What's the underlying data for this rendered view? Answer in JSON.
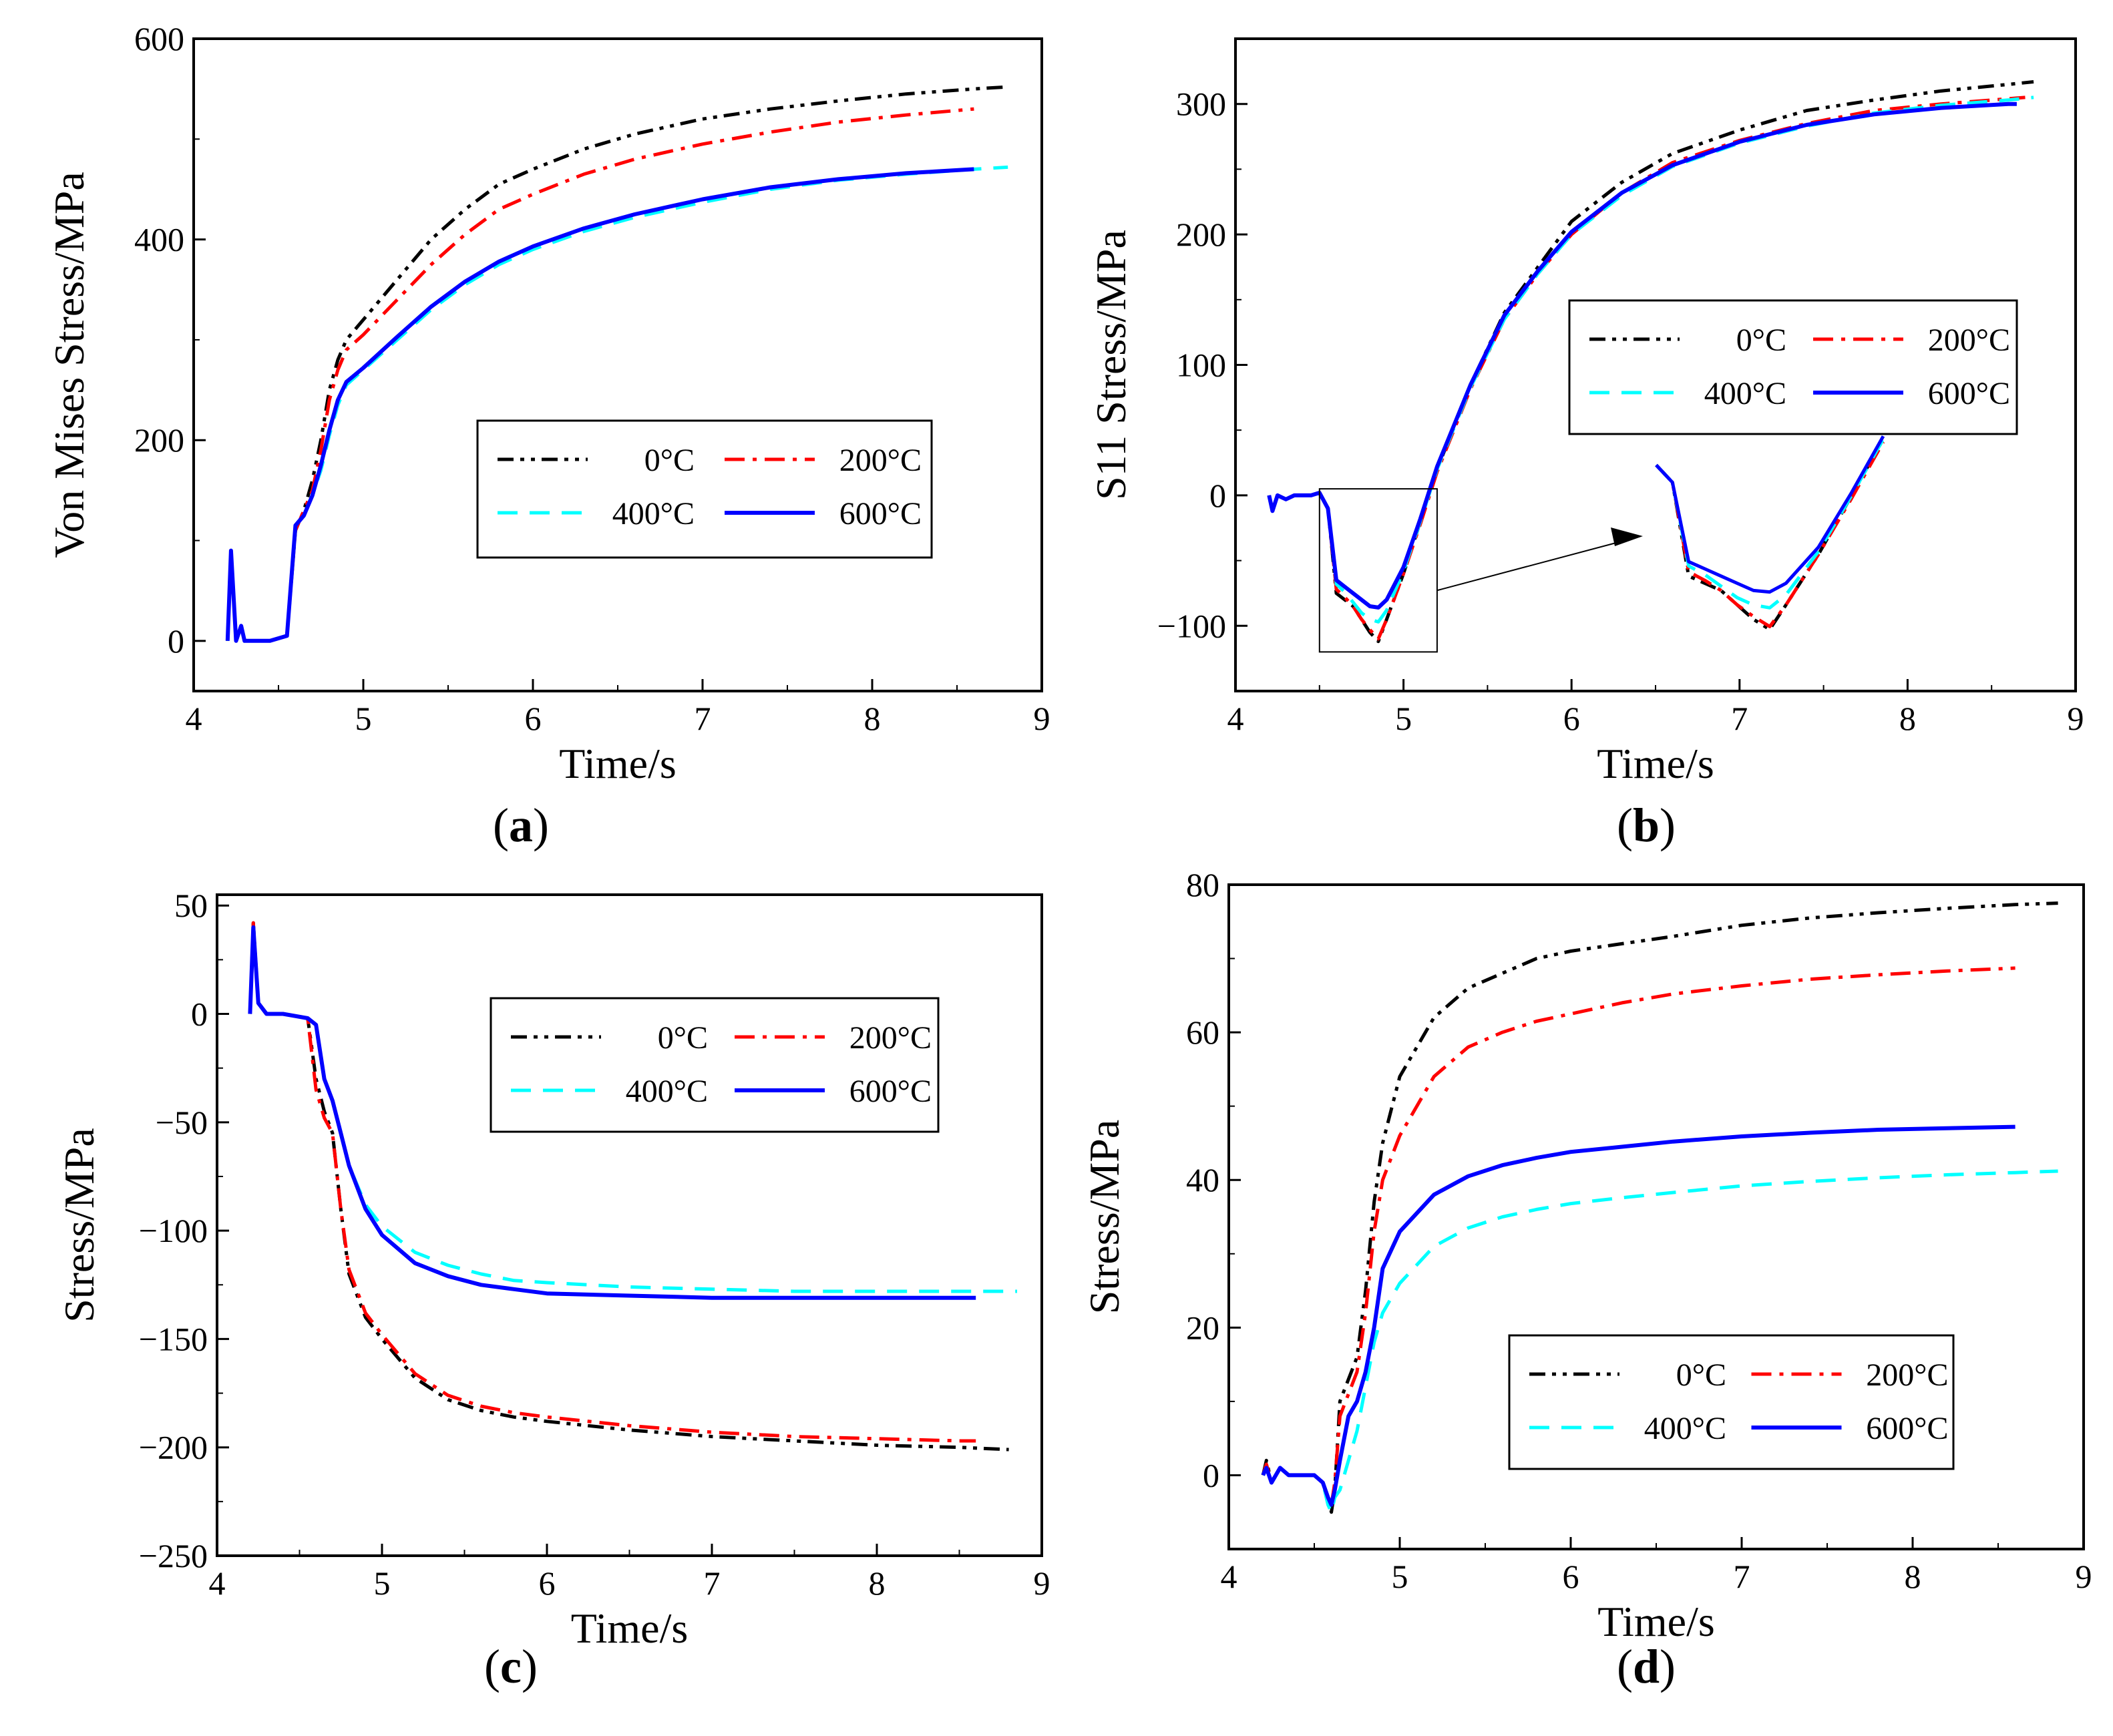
{
  "figure": {
    "series_styles": [
      {
        "name": "0°C",
        "color": "#000000",
        "dash": "dashdotdot"
      },
      {
        "name": "200°C",
        "color": "#ff0000",
        "dash": "dashdot"
      },
      {
        "name": "400°C",
        "color": "#00ffff",
        "dash": "dash"
      },
      {
        "name": "600°C",
        "color": "#0000ff",
        "dash": "solid"
      }
    ]
  },
  "chart_data": [
    {
      "id": "a",
      "type": "line",
      "panel_label": "(a)",
      "label_letter": "a",
      "ylabel": "Von Mises Stress/MPa",
      "xlabel": "Time/s",
      "xlim": [
        4,
        9
      ],
      "ylim": [
        -50,
        600
      ],
      "xticks": [
        4,
        5,
        6,
        7,
        8,
        9
      ],
      "yticks": [
        0,
        200,
        400,
        600
      ],
      "legend_position": "center-right",
      "series": [
        {
          "name": "0°C",
          "x": [
            4.2,
            4.22,
            4.25,
            4.28,
            4.3,
            4.35,
            4.45,
            4.55,
            4.6,
            4.65,
            4.7,
            4.75,
            4.8,
            4.85,
            4.9,
            5.0,
            5.2,
            5.4,
            5.6,
            5.8,
            6.0,
            6.3,
            6.6,
            7.0,
            7.4,
            7.8,
            8.2,
            8.6,
            8.8
          ],
          "y": [
            0,
            90,
            0,
            15,
            0,
            0,
            0,
            5,
            110,
            130,
            160,
            200,
            250,
            280,
            300,
            320,
            360,
            400,
            430,
            455,
            470,
            490,
            505,
            520,
            530,
            538,
            545,
            550,
            552
          ]
        },
        {
          "name": "200°C",
          "x": [
            4.2,
            4.22,
            4.25,
            4.28,
            4.3,
            4.35,
            4.45,
            4.55,
            4.6,
            4.65,
            4.7,
            4.75,
            4.8,
            4.85,
            4.9,
            5.0,
            5.2,
            5.4,
            5.6,
            5.8,
            6.0,
            6.3,
            6.6,
            7.0,
            7.4,
            7.8,
            8.2,
            8.6
          ],
          "y": [
            0,
            90,
            0,
            15,
            0,
            0,
            0,
            5,
            110,
            130,
            150,
            190,
            240,
            270,
            290,
            305,
            340,
            375,
            405,
            430,
            445,
            465,
            480,
            495,
            507,
            517,
            524,
            530
          ]
        },
        {
          "name": "400°C",
          "x": [
            4.2,
            4.22,
            4.25,
            4.28,
            4.3,
            4.35,
            4.45,
            4.55,
            4.6,
            4.65,
            4.7,
            4.75,
            4.8,
            4.85,
            4.9,
            5.0,
            5.2,
            5.4,
            5.6,
            5.8,
            6.0,
            6.3,
            6.6,
            7.0,
            7.4,
            7.8,
            8.2,
            8.6,
            8.8
          ],
          "y": [
            0,
            90,
            0,
            15,
            0,
            0,
            0,
            5,
            115,
            125,
            145,
            170,
            205,
            235,
            255,
            270,
            300,
            330,
            355,
            375,
            390,
            408,
            422,
            437,
            450,
            459,
            465,
            470,
            472
          ]
        },
        {
          "name": "600°C",
          "x": [
            4.2,
            4.22,
            4.25,
            4.28,
            4.3,
            4.35,
            4.45,
            4.55,
            4.6,
            4.65,
            4.7,
            4.75,
            4.8,
            4.85,
            4.9,
            5.0,
            5.2,
            5.4,
            5.6,
            5.8,
            6.0,
            6.3,
            6.6,
            7.0,
            7.4,
            7.8,
            8.2,
            8.6
          ],
          "y": [
            0,
            90,
            0,
            15,
            0,
            0,
            0,
            5,
            115,
            125,
            145,
            175,
            210,
            240,
            258,
            272,
            303,
            333,
            358,
            378,
            393,
            411,
            425,
            440,
            452,
            460,
            466,
            470
          ]
        }
      ]
    },
    {
      "id": "b",
      "type": "line",
      "panel_label": "(b)",
      "label_letter": "b",
      "ylabel": "S11 Stress/MPa",
      "xlabel": "Time/s",
      "xlim": [
        4,
        9
      ],
      "ylim": [
        -150,
        350
      ],
      "xticks": [
        4,
        5,
        6,
        7,
        8,
        9
      ],
      "yticks": [
        -100,
        0,
        100,
        200,
        300
      ],
      "legend_position": "top-right",
      "inset_region": {
        "x": [
          4.5,
          5.2
        ],
        "y": [
          -120,
          5
        ]
      },
      "series": [
        {
          "name": "0°C",
          "x": [
            4.2,
            4.22,
            4.25,
            4.3,
            4.35,
            4.45,
            4.5,
            4.55,
            4.6,
            4.65,
            4.7,
            4.75,
            4.8,
            4.85,
            4.9,
            5.0,
            5.1,
            5.2,
            5.4,
            5.6,
            5.8,
            6.0,
            6.3,
            6.6,
            7.0,
            7.4,
            7.8,
            8.2,
            8.6,
            8.75
          ],
          "y": [
            0,
            -12,
            0,
            -3,
            0,
            0,
            2,
            -10,
            -75,
            -80,
            -85,
            -95,
            -105,
            -112,
            -95,
            -60,
            -20,
            20,
            85,
            140,
            175,
            210,
            240,
            262,
            280,
            295,
            303,
            310,
            315,
            317
          ]
        },
        {
          "name": "200°C",
          "x": [
            4.2,
            4.22,
            4.25,
            4.3,
            4.35,
            4.45,
            4.5,
            4.55,
            4.6,
            4.65,
            4.7,
            4.75,
            4.8,
            4.85,
            4.9,
            5.0,
            5.1,
            5.2,
            5.4,
            5.6,
            5.8,
            6.0,
            6.3,
            6.6,
            7.0,
            7.4,
            7.8,
            8.2,
            8.6,
            8.7
          ],
          "y": [
            0,
            -12,
            0,
            -3,
            0,
            0,
            2,
            -10,
            -72,
            -78,
            -85,
            -95,
            -103,
            -110,
            -95,
            -60,
            -22,
            18,
            82,
            135,
            170,
            200,
            232,
            255,
            272,
            285,
            295,
            300,
            304,
            305
          ]
        },
        {
          "name": "400°C",
          "x": [
            4.2,
            4.22,
            4.25,
            4.3,
            4.35,
            4.45,
            4.5,
            4.55,
            4.6,
            4.65,
            4.7,
            4.75,
            4.8,
            4.85,
            4.9,
            5.0,
            5.1,
            5.2,
            5.4,
            5.6,
            5.8,
            6.0,
            6.3,
            6.6,
            7.0,
            7.4,
            7.8,
            8.2,
            8.6,
            8.75
          ],
          "y": [
            0,
            -12,
            0,
            -3,
            0,
            0,
            2,
            -10,
            -68,
            -74,
            -82,
            -90,
            -95,
            -97,
            -88,
            -58,
            -20,
            20,
            83,
            135,
            170,
            200,
            230,
            252,
            270,
            283,
            293,
            299,
            303,
            305
          ]
        },
        {
          "name": "600°C",
          "x": [
            4.2,
            4.22,
            4.25,
            4.3,
            4.35,
            4.45,
            4.5,
            4.55,
            4.6,
            4.65,
            4.7,
            4.75,
            4.8,
            4.85,
            4.9,
            5.0,
            5.1,
            5.2,
            5.4,
            5.6,
            5.8,
            6.0,
            6.3,
            6.6,
            7.0,
            7.4,
            7.8,
            8.2,
            8.6,
            8.65
          ],
          "y": [
            0,
            -12,
            0,
            -3,
            0,
            0,
            2,
            -10,
            -65,
            -70,
            -75,
            -80,
            -85,
            -86,
            -80,
            -55,
            -18,
            22,
            85,
            138,
            172,
            202,
            232,
            253,
            271,
            284,
            292,
            297,
            300,
            300
          ]
        }
      ]
    },
    {
      "id": "c",
      "type": "line",
      "panel_label": "(c)",
      "label_letter": "c",
      "ylabel": "Stress/MPa",
      "xlabel": "Time/s",
      "xlim": [
        4,
        9
      ],
      "ylim": [
        -250,
        55
      ],
      "xticks": [
        4,
        5,
        6,
        7,
        8,
        9
      ],
      "yticks": [
        -250,
        -200,
        -150,
        -100,
        -50,
        0,
        50
      ],
      "legend_position": "top-right",
      "series": [
        {
          "name": "0°C",
          "x": [
            4.2,
            4.22,
            4.25,
            4.3,
            4.4,
            4.55,
            4.6,
            4.65,
            4.7,
            4.75,
            4.8,
            4.9,
            5.0,
            5.2,
            5.4,
            5.6,
            5.8,
            6.0,
            6.5,
            7.0,
            7.5,
            8.0,
            8.5,
            8.8
          ],
          "y": [
            0,
            42,
            5,
            0,
            0,
            -2,
            -30,
            -45,
            -55,
            -90,
            -120,
            -140,
            -150,
            -168,
            -178,
            -183,
            -186,
            -188,
            -192,
            -195,
            -197,
            -199,
            -200,
            -201
          ]
        },
        {
          "name": "200°C",
          "x": [
            4.2,
            4.22,
            4.25,
            4.3,
            4.4,
            4.55,
            4.6,
            4.65,
            4.7,
            4.75,
            4.8,
            4.9,
            5.0,
            5.2,
            5.4,
            5.6,
            5.8,
            6.0,
            6.5,
            7.0,
            7.5,
            8.0,
            8.5,
            8.6
          ],
          "y": [
            0,
            42,
            5,
            0,
            0,
            -2,
            -35,
            -48,
            -55,
            -90,
            -118,
            -138,
            -148,
            -166,
            -176,
            -181,
            -184,
            -186,
            -190,
            -193,
            -195,
            -196,
            -197,
            -197
          ]
        },
        {
          "name": "400°C",
          "x": [
            4.2,
            4.22,
            4.25,
            4.3,
            4.4,
            4.55,
            4.6,
            4.65,
            4.7,
            4.75,
            4.8,
            4.9,
            5.0,
            5.2,
            5.4,
            5.6,
            5.8,
            6.0,
            6.5,
            7.0,
            7.5,
            8.0,
            8.5,
            8.85
          ],
          "y": [
            0,
            40,
            5,
            0,
            0,
            -2,
            -5,
            -30,
            -40,
            -55,
            -70,
            -88,
            -98,
            -110,
            -116,
            -120,
            -123,
            -124,
            -126,
            -127,
            -128,
            -128,
            -128,
            -128
          ]
        },
        {
          "name": "600°C",
          "x": [
            4.2,
            4.22,
            4.25,
            4.3,
            4.4,
            4.55,
            4.6,
            4.65,
            4.7,
            4.75,
            4.8,
            4.9,
            5.0,
            5.2,
            5.4,
            5.6,
            5.8,
            6.0,
            6.5,
            7.0,
            7.5,
            8.0,
            8.5,
            8.6
          ],
          "y": [
            0,
            40,
            5,
            0,
            0,
            -2,
            -5,
            -30,
            -40,
            -55,
            -70,
            -90,
            -102,
            -115,
            -121,
            -125,
            -127,
            -129,
            -130,
            -131,
            -131,
            -131,
            -131,
            -131
          ]
        }
      ]
    },
    {
      "id": "d",
      "type": "line",
      "panel_label": "(d)",
      "label_letter": "d",
      "ylabel": "Stress/MPa",
      "xlabel": "Time/s",
      "xlim": [
        4,
        9
      ],
      "ylim": [
        -10,
        80
      ],
      "xticks": [
        4,
        5,
        6,
        7,
        8,
        9
      ],
      "yticks": [
        0,
        20,
        40,
        60,
        80
      ],
      "legend_position": "bottom-right",
      "series": [
        {
          "name": "0°C",
          "x": [
            4.2,
            4.22,
            4.25,
            4.3,
            4.35,
            4.4,
            4.5,
            4.55,
            4.58,
            4.6,
            4.62,
            4.65,
            4.7,
            4.75,
            4.8,
            4.85,
            4.9,
            5.0,
            5.2,
            5.4,
            5.6,
            5.8,
            6.0,
            6.3,
            6.6,
            7.0,
            7.4,
            7.8,
            8.2,
            8.6,
            8.85
          ],
          "y": [
            0,
            2,
            -1,
            1,
            0,
            0,
            0,
            -1,
            -3,
            -5,
            -2,
            10,
            13,
            16,
            25,
            37,
            45,
            54,
            62,
            66,
            68,
            70,
            71,
            72,
            73,
            74.5,
            75.5,
            76.2,
            76.8,
            77.3,
            77.5
          ]
        },
        {
          "name": "200°C",
          "x": [
            4.2,
            4.22,
            4.25,
            4.3,
            4.35,
            4.4,
            4.5,
            4.55,
            4.58,
            4.6,
            4.62,
            4.65,
            4.7,
            4.75,
            4.8,
            4.85,
            4.9,
            5.0,
            5.2,
            5.4,
            5.6,
            5.8,
            6.0,
            6.3,
            6.6,
            7.0,
            7.4,
            7.8,
            8.2,
            8.6
          ],
          "y": [
            0,
            1.5,
            -1,
            1,
            0,
            0,
            0,
            -1,
            -3,
            -4,
            -1,
            8,
            11,
            14,
            22,
            33,
            40,
            46,
            54,
            58,
            60,
            61.5,
            62.5,
            64,
            65.2,
            66.3,
            67.2,
            67.8,
            68.3,
            68.7
          ]
        },
        {
          "name": "400°C",
          "x": [
            4.2,
            4.22,
            4.25,
            4.3,
            4.35,
            4.4,
            4.5,
            4.55,
            4.58,
            4.6,
            4.62,
            4.65,
            4.7,
            4.75,
            4.8,
            4.85,
            4.9,
            5.0,
            5.2,
            5.4,
            5.6,
            5.8,
            6.0,
            6.3,
            6.6,
            7.0,
            7.4,
            7.8,
            8.2,
            8.6,
            8.85
          ],
          "y": [
            0,
            1,
            -1,
            1,
            0,
            0,
            0,
            -1,
            -4,
            -5,
            -3,
            -2,
            2,
            6,
            12,
            18,
            22,
            26,
            31,
            33.5,
            35,
            36,
            36.8,
            37.6,
            38.3,
            39.2,
            39.8,
            40.3,
            40.7,
            41,
            41.2
          ]
        },
        {
          "name": "600°C",
          "x": [
            4.2,
            4.22,
            4.25,
            4.3,
            4.35,
            4.4,
            4.5,
            4.55,
            4.58,
            4.6,
            4.62,
            4.65,
            4.7,
            4.75,
            4.8,
            4.85,
            4.9,
            5.0,
            5.2,
            5.4,
            5.6,
            5.8,
            6.0,
            6.3,
            6.6,
            7.0,
            7.4,
            7.8,
            8.2,
            8.6
          ],
          "y": [
            0,
            1,
            -1,
            1,
            0,
            0,
            0,
            -1,
            -3,
            -4,
            -2,
            2,
            8,
            10,
            14,
            20,
            28,
            33,
            38,
            40.5,
            42,
            43,
            43.8,
            44.5,
            45.2,
            45.9,
            46.4,
            46.8,
            47,
            47.2
          ]
        }
      ]
    }
  ]
}
